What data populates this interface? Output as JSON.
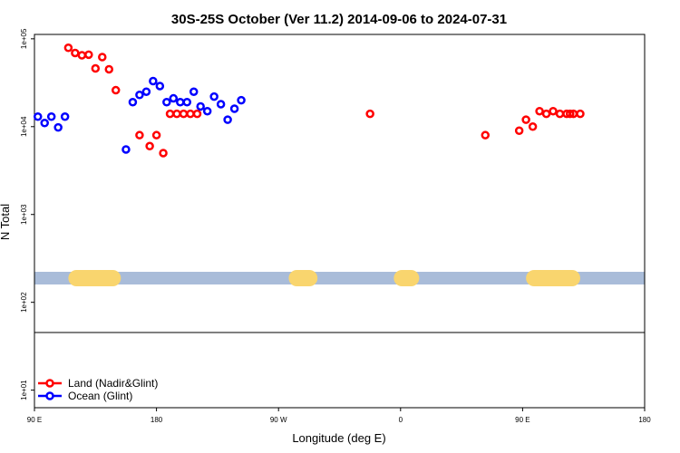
{
  "chart_data": {
    "type": "scatter",
    "title": "30S-25S October (Ver 11.2)   2014-09-06 to 2024-07-31",
    "xlabel": "Longitude (deg E)",
    "ylabel": "N Total",
    "yscale": "log",
    "xlim": [
      90,
      450
    ],
    "ylim_log10": [
      0.8,
      5.05
    ],
    "x_tick_values": [
      90,
      162,
      234,
      306,
      378,
      450
    ],
    "x_tick_labels": [
      "90 E",
      "180",
      "90 W",
      "0",
      "90 E",
      "180"
    ],
    "y_tick_exponents": [
      1,
      2,
      3,
      4,
      5
    ],
    "y_tick_labels": [
      "1e+01",
      "1e+02",
      "1e+03",
      "1e+04",
      "1e+05"
    ],
    "grid": false,
    "legend_position": "bottom-left",
    "land_mask": {
      "fill_ocean": "#a9bcd9",
      "fill_land": "#f9d56e",
      "land_ranges": [
        [
          110,
          141
        ],
        [
          240,
          257
        ],
        [
          302,
          317
        ],
        [
          380,
          412
        ]
      ]
    },
    "series": [
      {
        "name": "Land (Nadir&Glint)",
        "color": "#ff0000",
        "x": [
          110,
          114,
          118,
          122,
          126,
          130,
          134,
          138,
          288,
          356,
          376,
          380,
          384,
          388,
          392,
          396,
          400,
          404,
          408,
          412,
          152,
          158,
          162,
          166,
          170,
          174,
          178,
          182,
          186,
          406
        ],
        "y": [
          79000,
          69000,
          65000,
          66000,
          46000,
          62000,
          45000,
          26000,
          14000,
          8000,
          9000,
          12000,
          10000,
          15000,
          14000,
          15000,
          14000,
          14000,
          14000,
          14000,
          8000,
          6000,
          8000,
          5000,
          14000,
          14000,
          14000,
          14000,
          14000,
          14000
        ]
      },
      {
        "name": "Ocean (Glint)",
        "color": "#0000ff",
        "x": [
          92,
          96,
          100,
          104,
          108,
          144,
          148,
          152,
          156,
          160,
          164,
          168,
          172,
          176,
          180,
          184,
          188,
          192,
          196,
          200,
          204,
          208,
          212
        ],
        "y": [
          13000,
          11000,
          13000,
          9800,
          13000,
          5500,
          19000,
          23000,
          25000,
          33000,
          29000,
          19000,
          21000,
          19000,
          19000,
          25000,
          17000,
          15000,
          22000,
          18000,
          12000,
          16000,
          20000
        ]
      }
    ]
  }
}
